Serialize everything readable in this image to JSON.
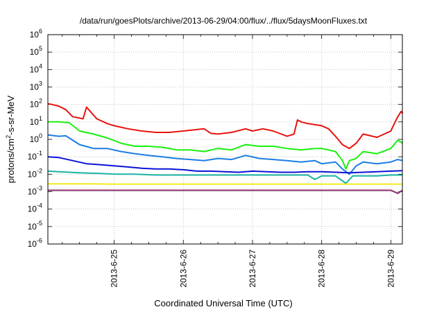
{
  "chart_data": {
    "type": "line",
    "title": "/data/run/goesPlots/archive/2013-06-29/04:00/flux/../flux/5daysMoonFluxes.txt",
    "xlabel": "Coordinated Universal Time (UTC)",
    "ylabel": "protons/cm2-s-sr-MeV",
    "yscale": "log",
    "ylim_exponents": [
      -6,
      6
    ],
    "y_tick_labels": [
      "10-6",
      "10-5",
      "10-4",
      "10-3",
      "10-2",
      "10-1",
      "100",
      "101",
      "102",
      "103",
      "104",
      "105",
      "106"
    ],
    "x_range_days": [
      "2013-06-24 01:00",
      "2013-06-29 04:00"
    ],
    "x_tick_labels": [
      "2013-6-25",
      "2013-6-26",
      "2013-6-27",
      "2013-6-28",
      "2013-6-29"
    ],
    "grid": true,
    "series": [
      {
        "color": "#e8120c",
        "t": [
          24.04,
          24.1,
          24.2,
          24.3,
          24.4,
          24.55,
          24.6,
          24.75,
          24.9,
          25.0,
          25.2,
          25.4,
          25.6,
          25.8,
          26.0,
          26.3,
          26.4,
          26.5,
          26.7,
          26.9,
          27.0,
          27.15,
          27.3,
          27.5,
          27.6,
          27.65,
          27.7,
          27.8,
          28.0,
          28.1,
          28.2,
          28.3,
          28.4,
          28.5,
          28.6,
          28.8,
          29.0,
          29.05,
          29.1,
          29.15,
          29.17
        ],
        "v": [
          110,
          100,
          80,
          50,
          20,
          15,
          70,
          15,
          8,
          6,
          4,
          3,
          2.5,
          2.5,
          3,
          4,
          2.2,
          2,
          2.5,
          4,
          3,
          4,
          3,
          1.5,
          2,
          13,
          10,
          8,
          6,
          4,
          1.5,
          0.5,
          0.3,
          0.6,
          2,
          1.3,
          3,
          8,
          20,
          40,
          30
        ]
      },
      {
        "color": "#19f00d",
        "t": [
          24.04,
          24.2,
          24.35,
          24.5,
          24.7,
          24.9,
          25.1,
          25.3,
          25.5,
          25.7,
          25.9,
          26.1,
          26.3,
          26.5,
          26.7,
          26.9,
          27.1,
          27.3,
          27.5,
          27.7,
          27.9,
          28.0,
          28.2,
          28.3,
          28.35,
          28.4,
          28.5,
          28.6,
          28.8,
          29.0,
          29.1,
          29.17
        ],
        "v": [
          10,
          10,
          9,
          3,
          2,
          1.2,
          0.6,
          0.4,
          0.4,
          0.35,
          0.25,
          0.25,
          0.2,
          0.3,
          0.25,
          0.5,
          0.4,
          0.4,
          0.3,
          0.25,
          0.3,
          0.3,
          0.2,
          0.06,
          0.02,
          0.06,
          0.08,
          0.2,
          0.15,
          0.3,
          0.9,
          0.6
        ]
      },
      {
        "color": "#1a7de4",
        "t": [
          24.04,
          24.2,
          24.3,
          24.5,
          24.7,
          24.9,
          25.1,
          25.3,
          25.5,
          25.7,
          25.9,
          26.1,
          26.3,
          26.5,
          26.7,
          26.9,
          27.1,
          27.3,
          27.5,
          27.7,
          27.9,
          28.0,
          28.2,
          28.3,
          28.4,
          28.5,
          28.6,
          28.8,
          29.0,
          29.1,
          29.17
        ],
        "v": [
          1.8,
          1.5,
          1.6,
          0.5,
          0.3,
          0.3,
          0.2,
          0.15,
          0.12,
          0.1,
          0.08,
          0.07,
          0.06,
          0.08,
          0.07,
          0.12,
          0.08,
          0.07,
          0.06,
          0.05,
          0.06,
          0.04,
          0.05,
          0.02,
          0.01,
          0.03,
          0.05,
          0.04,
          0.05,
          0.07,
          0.06
        ]
      },
      {
        "color": "#0a12d8",
        "t": [
          24.04,
          24.2,
          24.4,
          24.6,
          24.8,
          25.0,
          25.2,
          25.4,
          25.6,
          25.8,
          26.0,
          26.2,
          26.4,
          26.6,
          26.8,
          27.0,
          27.2,
          27.4,
          27.6,
          27.8,
          28.0,
          28.2,
          28.4,
          28.6,
          28.8,
          29.0,
          29.17
        ],
        "v": [
          0.1,
          0.09,
          0.06,
          0.04,
          0.035,
          0.03,
          0.026,
          0.022,
          0.02,
          0.02,
          0.018,
          0.015,
          0.015,
          0.014,
          0.013,
          0.015,
          0.014,
          0.013,
          0.013,
          0.014,
          0.014,
          0.013,
          0.012,
          0.013,
          0.014,
          0.015,
          0.016
        ]
      },
      {
        "color": "#19b3a5",
        "t": [
          24.04,
          24.2,
          24.5,
          24.8,
          25.0,
          25.3,
          25.6,
          25.9,
          26.2,
          26.5,
          26.8,
          27.0,
          27.3,
          27.6,
          27.8,
          27.9,
          28.0,
          28.2,
          28.35,
          28.45,
          28.6,
          28.8,
          29.0,
          29.17
        ],
        "v": [
          0.015,
          0.014,
          0.012,
          0.011,
          0.01,
          0.01,
          0.009,
          0.009,
          0.009,
          0.009,
          0.009,
          0.009,
          0.009,
          0.009,
          0.009,
          0.005,
          0.008,
          0.008,
          0.003,
          0.008,
          0.008,
          0.008,
          0.009,
          0.009
        ]
      },
      {
        "color": "#f2ec1a",
        "t": [
          24.04,
          24.5,
          25.0,
          25.5,
          26.0,
          26.5,
          27.0,
          27.5,
          28.0,
          28.5,
          29.0,
          29.17
        ],
        "v": [
          0.0028,
          0.0028,
          0.0027,
          0.0027,
          0.0027,
          0.0027,
          0.0027,
          0.0027,
          0.0027,
          0.0027,
          0.0027,
          0.0027
        ]
      },
      {
        "color": "#8c2c6c",
        "t": [
          24.04,
          24.5,
          25.0,
          25.5,
          26.0,
          26.5,
          27.0,
          27.5,
          28.0,
          28.5,
          29.0,
          29.1,
          29.17
        ],
        "v": [
          0.0012,
          0.0012,
          0.0012,
          0.0012,
          0.0012,
          0.0012,
          0.0012,
          0.0012,
          0.0012,
          0.0012,
          0.0012,
          0.0008,
          0.0012
        ]
      }
    ]
  }
}
